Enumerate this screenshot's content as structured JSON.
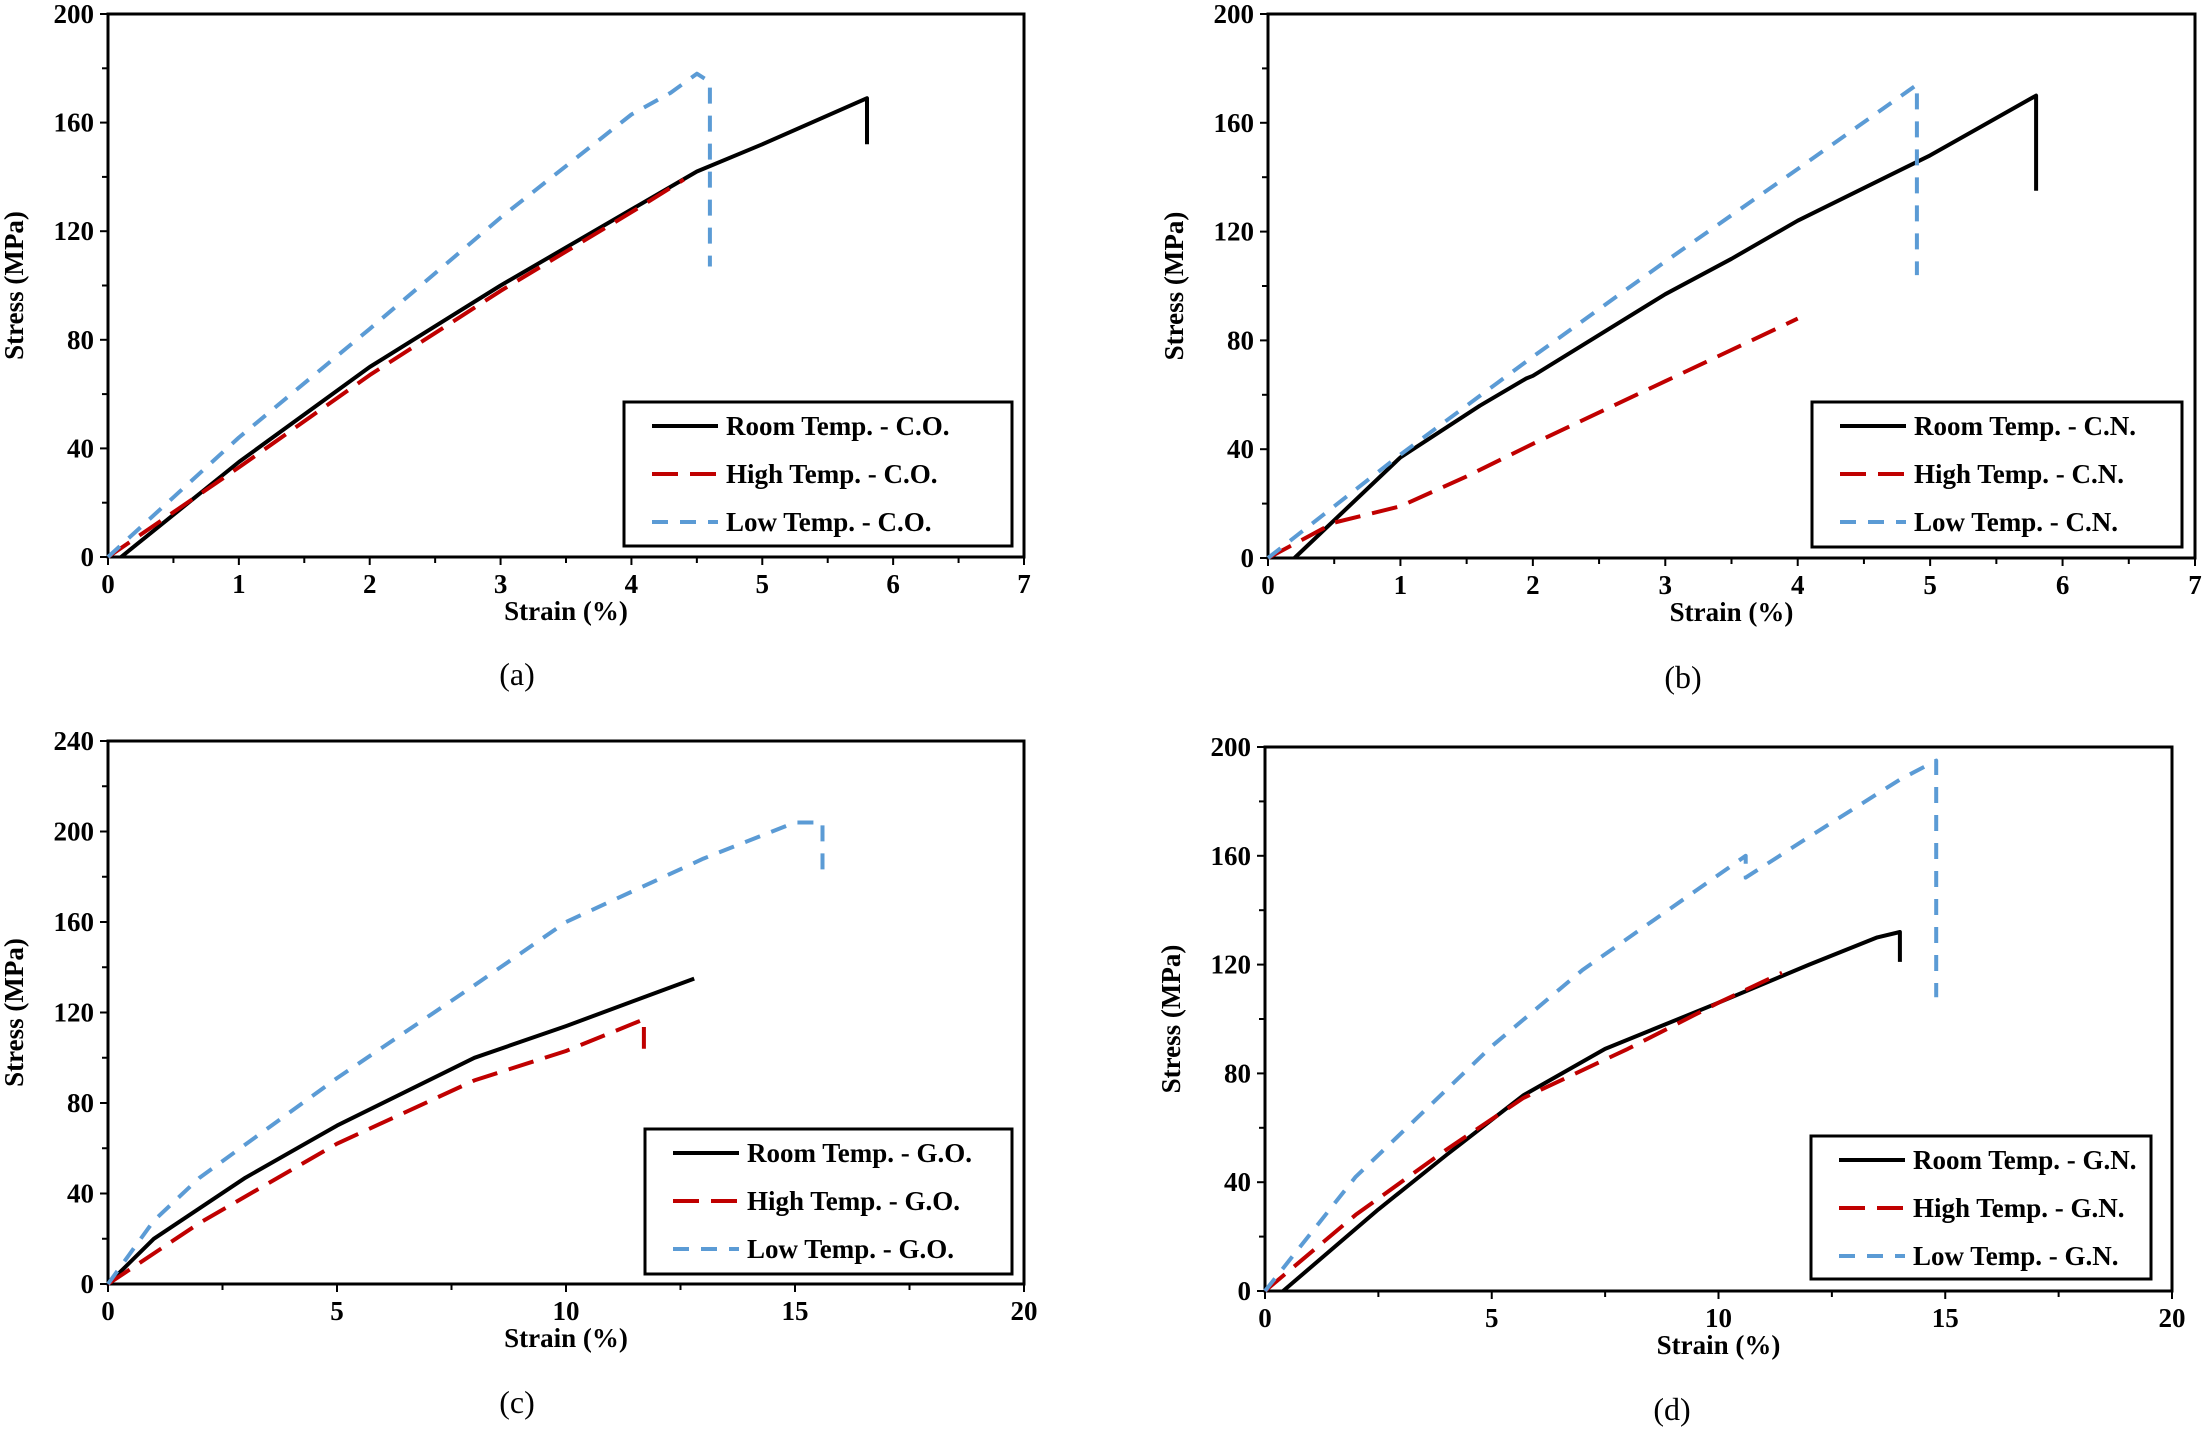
{
  "colors": {
    "room": "#000000",
    "high": "#c00000",
    "low": "#5b9bd5"
  },
  "chart_data": [
    {
      "type": "line",
      "caption": "(a)",
      "xlabel": "Strain (%)",
      "ylabel": "Stress (MPa)",
      "xlim": [
        0,
        7
      ],
      "ylim": [
        0,
        200
      ],
      "xticks": [
        0,
        1,
        2,
        3,
        4,
        5,
        6,
        7
      ],
      "yticks": [
        0,
        40,
        80,
        120,
        160,
        200
      ],
      "legend_position": "bottom-right",
      "series": [
        {
          "name": "Room Temp. - C.O.",
          "key": "room",
          "points": [
            [
              0.1,
              0
            ],
            [
              1,
              35
            ],
            [
              2,
              70
            ],
            [
              2.6,
              88
            ],
            [
              3,
              100
            ],
            [
              4,
              128
            ],
            [
              4.5,
              142
            ],
            [
              5,
              152
            ],
            [
              5.8,
              169
            ],
            [
              5.8,
              152
            ]
          ]
        },
        {
          "name": "High Temp. - C.O.",
          "key": "high",
          "points": [
            [
              0,
              0
            ],
            [
              1,
              33
            ],
            [
              2,
              67
            ],
            [
              3,
              98
            ],
            [
              4,
              127
            ],
            [
              4.4,
              139
            ]
          ]
        },
        {
          "name": "Low Temp. - C.O.",
          "key": "low",
          "points": [
            [
              0,
              0
            ],
            [
              0.5,
              22
            ],
            [
              1,
              44
            ],
            [
              2,
              84
            ],
            [
              3,
              125
            ],
            [
              4,
              163
            ],
            [
              4.3,
              171
            ],
            [
              4.5,
              178
            ],
            [
              4.6,
              175
            ],
            [
              4.6,
              107
            ]
          ]
        }
      ]
    },
    {
      "type": "line",
      "caption": "(b)",
      "xlabel": "Strain (%)",
      "ylabel": "Stress (MPa)",
      "xlim": [
        0,
        7
      ],
      "ylim": [
        0,
        200
      ],
      "xticks": [
        0,
        1,
        2,
        3,
        4,
        5,
        6,
        7
      ],
      "yticks": [
        0,
        40,
        80,
        120,
        160,
        200
      ],
      "legend_position": "bottom-right",
      "series": [
        {
          "name": "Room Temp. - C.N.",
          "key": "room",
          "points": [
            [
              0.2,
              0
            ],
            [
              1,
              37
            ],
            [
              1.6,
              56
            ],
            [
              1.95,
              66
            ],
            [
              2,
              67
            ],
            [
              3,
              97
            ],
            [
              3.5,
              110
            ],
            [
              4,
              124
            ],
            [
              5,
              148
            ],
            [
              5.8,
              170
            ],
            [
              5.8,
              135
            ]
          ]
        },
        {
          "name": "High Temp. - C.N.",
          "key": "high",
          "points": [
            [
              0,
              0
            ],
            [
              0.5,
              13
            ],
            [
              1,
              19
            ],
            [
              1.5,
              30
            ],
            [
              2,
              42
            ],
            [
              3,
              65
            ],
            [
              4,
              88
            ]
          ]
        },
        {
          "name": "Low Temp. - C.N.",
          "key": "low",
          "points": [
            [
              0,
              0
            ],
            [
              1,
              38
            ],
            [
              2,
              74
            ],
            [
              3,
              109
            ],
            [
              4,
              143
            ],
            [
              4.9,
              174
            ],
            [
              4.9,
              104
            ]
          ]
        }
      ]
    },
    {
      "type": "line",
      "caption": "(c)",
      "xlabel": "Strain (%)",
      "ylabel": "Stress (MPa)",
      "xlim": [
        0,
        20
      ],
      "ylim": [
        0,
        240
      ],
      "xticks": [
        0,
        5,
        10,
        15,
        20
      ],
      "yticks": [
        0,
        40,
        80,
        120,
        160,
        200,
        240
      ],
      "legend_position": "bottom-right",
      "series": [
        {
          "name": "Room Temp. - G.O.",
          "key": "room",
          "points": [
            [
              0,
              0
            ],
            [
              1,
              20
            ],
            [
              3,
              47
            ],
            [
              5,
              70
            ],
            [
              8,
              100
            ],
            [
              10,
              114
            ],
            [
              12.8,
              135
            ]
          ]
        },
        {
          "name": "High Temp. - G.O.",
          "key": "high",
          "points": [
            [
              0,
              0
            ],
            [
              2,
              27
            ],
            [
              5,
              62
            ],
            [
              8,
              90
            ],
            [
              10,
              103
            ],
            [
              11.7,
              117
            ],
            [
              11.7,
              104
            ]
          ]
        },
        {
          "name": "Low Temp. - G.O.",
          "key": "low",
          "points": [
            [
              0,
              0
            ],
            [
              1,
              28
            ],
            [
              2,
              47
            ],
            [
              5,
              91
            ],
            [
              8,
              132
            ],
            [
              10,
              160
            ],
            [
              13,
              188
            ],
            [
              15,
              204
            ],
            [
              15.6,
              204
            ],
            [
              15.6,
              182
            ]
          ]
        }
      ]
    },
    {
      "type": "line",
      "caption": "(d)",
      "xlabel": "Strain (%)",
      "ylabel": "Stress (MPa)",
      "xlim": [
        0,
        20
      ],
      "ylim": [
        0,
        200
      ],
      "xticks": [
        0,
        5,
        10,
        15,
        20
      ],
      "yticks": [
        0,
        40,
        80,
        120,
        160,
        200
      ],
      "legend_position": "bottom-right",
      "series": [
        {
          "name": "Room Temp. - G.N.",
          "key": "room",
          "points": [
            [
              0.4,
              0
            ],
            [
              2.5,
              30
            ],
            [
              4,
              50
            ],
            [
              5.7,
              72
            ],
            [
              7.5,
              89
            ],
            [
              10,
              106
            ],
            [
              12,
              120
            ],
            [
              13.5,
              130
            ],
            [
              14,
              132
            ],
            [
              14,
              121
            ]
          ]
        },
        {
          "name": "High Temp. - G.N.",
          "key": "high",
          "points": [
            [
              0,
              0
            ],
            [
              2,
              28
            ],
            [
              4,
              52
            ],
            [
              5.7,
              71
            ],
            [
              8,
              89
            ],
            [
              10,
              106
            ],
            [
              11.4,
              117
            ]
          ]
        },
        {
          "name": "Low Temp. - G.N.",
          "key": "low",
          "points": [
            [
              0,
              0
            ],
            [
              2,
              42
            ],
            [
              5,
              90
            ],
            [
              7,
              118
            ],
            [
              10.6,
              160
            ],
            [
              10.6,
              152
            ],
            [
              12,
              167
            ],
            [
              14,
              188
            ],
            [
              14.8,
              195
            ],
            [
              14.8,
              108
            ]
          ]
        }
      ]
    }
  ]
}
